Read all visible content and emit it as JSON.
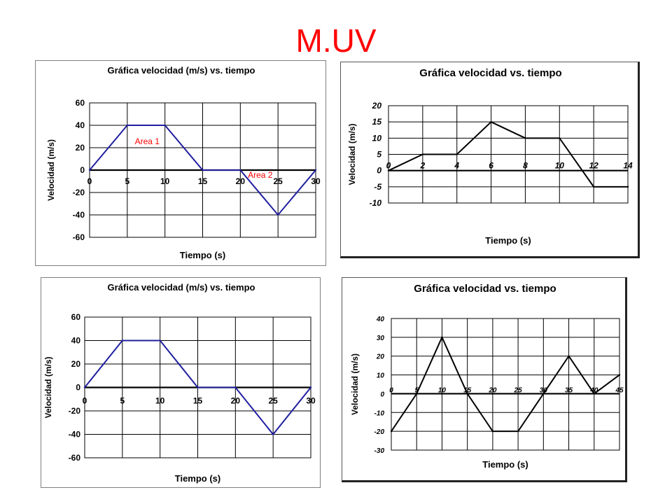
{
  "slide": {
    "title": "M.UV"
  },
  "colors": {
    "title": "#ff0000",
    "series_blue": "#1f1f9f",
    "series_black": "#000000",
    "annotation": "#ff0000"
  },
  "chart_data": [
    {
      "type": "line",
      "title": "Gráfica velocidad (m/s) vs. tiempo",
      "xlabel": "Tiempo (s)",
      "ylabel": "Velocidad (m/s)",
      "xlim": [
        0,
        30
      ],
      "ylim": [
        -60,
        60
      ],
      "x_ticks": [
        "0",
        "5",
        "10",
        "15",
        "20",
        "25",
        "30"
      ],
      "y_ticks": [
        "60",
        "40",
        "20",
        "0",
        "-20",
        "-40",
        "-60"
      ],
      "grid": true,
      "series": [
        {
          "x": [
            0,
            5,
            10,
            15,
            20,
            25,
            30
          ],
          "y": [
            0,
            40,
            40,
            0,
            0,
            -40,
            0
          ],
          "color": "#1f1f9f"
        }
      ],
      "annotations": [
        {
          "text": "Area 1",
          "x": 6,
          "y": 23
        },
        {
          "text": "Area 2",
          "x": 21,
          "y": -7
        }
      ]
    },
    {
      "type": "line",
      "title": "Gráfica velocidad vs. tiempo",
      "xlabel": "Tiempo (s)",
      "ylabel": "Velocidad (m/s)",
      "xlim": [
        0,
        14
      ],
      "ylim": [
        -10,
        20
      ],
      "x_ticks": [
        "0",
        "2",
        "4",
        "6",
        "8",
        "10",
        "12",
        "14"
      ],
      "y_ticks": [
        "20",
        "15",
        "10",
        "5",
        "0",
        "-5",
        "-10"
      ],
      "grid": true,
      "series": [
        {
          "x": [
            0,
            2,
            4,
            6,
            8,
            10,
            12,
            14
          ],
          "y": [
            0,
            5,
            5,
            15,
            10,
            10,
            -5,
            -5
          ],
          "color": "#000000"
        }
      ]
    },
    {
      "type": "line",
      "title": "Gráfica velocidad (m/s) vs. tiempo",
      "xlabel": "Tiempo (s)",
      "ylabel": "Velocidad (m/s)",
      "xlim": [
        0,
        30
      ],
      "ylim": [
        -60,
        60
      ],
      "x_ticks": [
        "0",
        "5",
        "10",
        "15",
        "20",
        "25",
        "30"
      ],
      "y_ticks": [
        "60",
        "40",
        "20",
        "0",
        "-20",
        "-40",
        "-60"
      ],
      "grid": true,
      "series": [
        {
          "x": [
            0,
            5,
            10,
            15,
            20,
            25,
            30
          ],
          "y": [
            0,
            40,
            40,
            0,
            0,
            -40,
            0
          ],
          "color": "#1f1f9f"
        }
      ]
    },
    {
      "type": "line",
      "title": "Gráfica velocidad vs. tiempo",
      "xlabel": "Tiempo (s)",
      "ylabel": "Velocidad (m/s)",
      "xlim": [
        0,
        45
      ],
      "ylim": [
        -30,
        40
      ],
      "x_ticks": [
        "0",
        "5",
        "10",
        "15",
        "20",
        "25",
        "30",
        "35",
        "40",
        "45"
      ],
      "y_ticks": [
        "40",
        "30",
        "20",
        "10",
        "0",
        "-10",
        "-20",
        "-30"
      ],
      "grid": true,
      "series": [
        {
          "x": [
            0,
            5,
            10,
            15,
            20,
            25,
            30,
            35,
            40,
            45
          ],
          "y": [
            -20,
            0,
            30,
            0,
            -20,
            -20,
            0,
            20,
            0,
            10
          ],
          "color": "#000000"
        }
      ]
    }
  ]
}
